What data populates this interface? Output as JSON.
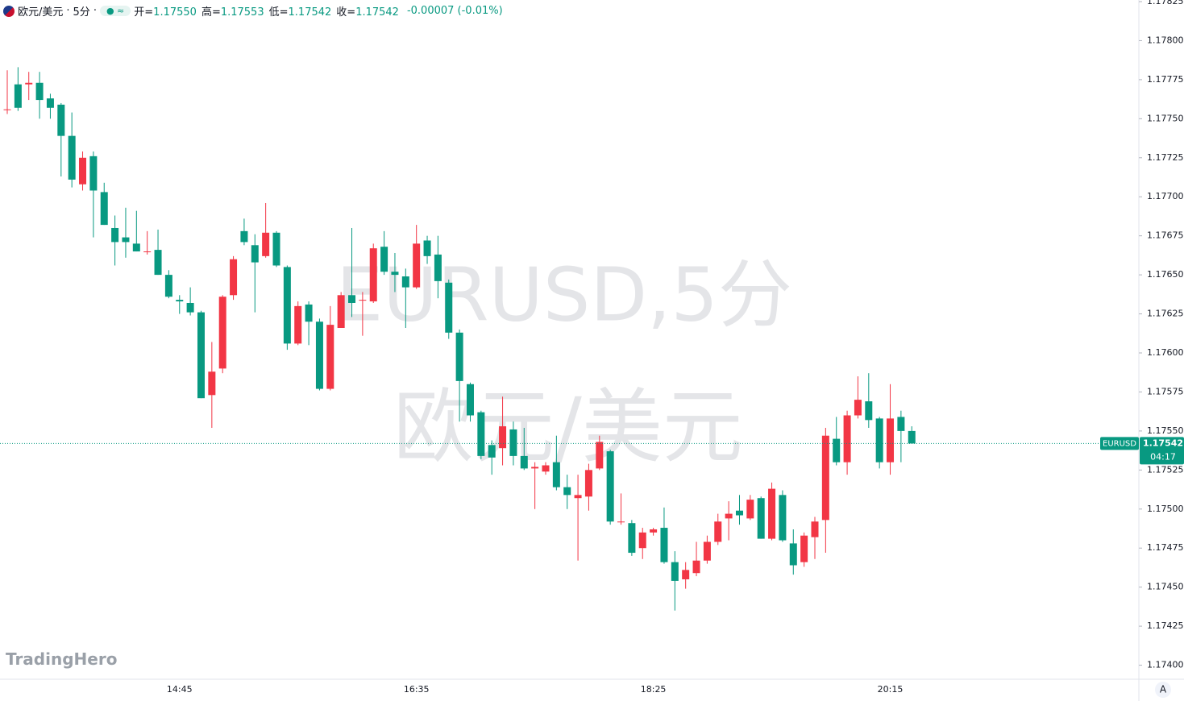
{
  "header": {
    "symbol": "欧元/美元",
    "interval": "5分",
    "ohlc": [
      {
        "label": "开=",
        "value": "1.17550"
      },
      {
        "label": "高=",
        "value": "1.17553"
      },
      {
        "label": "低=",
        "value": "1.17542"
      },
      {
        "label": "收=",
        "value": "1.17542"
      }
    ],
    "change": "-0.00007 (-0.01%)"
  },
  "watermark": {
    "line1": "EURUSD,5分",
    "line2": "欧元/美元"
  },
  "brand": "TradingHero",
  "scale_button": "A",
  "price_tag": {
    "symbol": "EURUSD",
    "price": {
      "value": 1.17542,
      "label": "1.17542"
    },
    "countdown": "04:17"
  },
  "chart_data": {
    "type": "candlestick",
    "up_color": "#f23645",
    "down_color": "#089981",
    "categories": [
      null,
      null,
      null,
      null,
      null,
      null,
      null,
      null,
      null,
      null,
      null,
      null,
      null,
      null,
      null,
      null,
      "14:45",
      null,
      null,
      null,
      null,
      null,
      null,
      null,
      null,
      null,
      null,
      null,
      null,
      null,
      null,
      null,
      null,
      null,
      null,
      null,
      null,
      null,
      "16:35",
      null,
      null,
      null,
      null,
      null,
      null,
      null,
      null,
      null,
      null,
      null,
      null,
      null,
      null,
      null,
      null,
      null,
      null,
      null,
      null,
      null,
      "18:25",
      null,
      null,
      null,
      null,
      null,
      null,
      null,
      null,
      null,
      null,
      null,
      null,
      null,
      null,
      null,
      null,
      null,
      null,
      null,
      null,
      null,
      "20:15",
      null,
      null
    ],
    "open": [
      1.17756,
      1.17772,
      1.17772,
      1.17773,
      1.17763,
      1.17759,
      1.17739,
      1.17708,
      1.17726,
      1.17703,
      1.1768,
      1.17674,
      1.1767,
      1.17665,
      1.17666,
      1.1765,
      1.17634,
      1.17632,
      1.17626,
      1.17573,
      1.1759,
      1.17637,
      1.17678,
      1.17669,
      1.17662,
      1.17677,
      1.17655,
      1.17606,
      1.17631,
      1.1762,
      1.17577,
      1.17616,
      1.17637,
      1.17634,
      1.17633,
      1.17668,
      1.17652,
      1.17649,
      1.17642,
      1.17672,
      1.17663,
      1.17645,
      1.17613,
      1.1758,
      1.17562,
      1.17541,
      1.17539,
      1.17551,
      1.17534,
      1.17526,
      1.17524,
      1.1753,
      1.17514,
      1.17507,
      1.17508,
      1.17526,
      1.17537,
      1.17492,
      1.17491,
      1.17475,
      1.17485,
      1.17488,
      1.17466,
      1.17455,
      1.17459,
      1.17467,
      1.17479,
      1.17494,
      1.17499,
      1.17494,
      1.17507,
      1.17481,
      1.17509,
      1.17478,
      1.17466,
      1.17482,
      1.17493,
      1.17545,
      1.1753,
      1.1756,
      1.17569,
      1.17558,
      1.1753,
      1.17559,
      1.1755
    ],
    "high": [
      1.17781,
      1.17783,
      1.1778,
      1.1778,
      1.17766,
      1.1776,
      1.17754,
      1.17729,
      1.17729,
      1.17709,
      1.17688,
      1.17693,
      1.17691,
      1.17678,
      1.17679,
      1.17653,
      1.17637,
      1.17642,
      1.17627,
      1.17607,
      1.17637,
      1.17662,
      1.17686,
      1.17676,
      1.17696,
      1.17678,
      1.17656,
      1.17633,
      1.17633,
      1.17622,
      1.1763,
      1.17639,
      1.1768,
      1.17639,
      1.1767,
      1.17678,
      1.17664,
      1.17654,
      1.17682,
      1.17675,
      1.17675,
      1.17647,
      1.17615,
      1.17581,
      1.17563,
      1.17544,
      1.17572,
      1.17556,
      1.17552,
      1.1753,
      1.1753,
      1.17547,
      1.17522,
      1.17522,
      1.17529,
      1.17547,
      1.17538,
      1.1751,
      1.17493,
      1.17488,
      1.17488,
      1.17501,
      1.17473,
      1.17466,
      1.17479,
      1.17483,
      1.17497,
      1.17505,
      1.17509,
      1.17509,
      1.17508,
      1.17517,
      1.17512,
      1.17487,
      1.17485,
      1.17495,
      1.17552,
      1.17559,
      1.17563,
      1.17585,
      1.17587,
      1.17559,
      1.1758,
      1.17563,
      1.17553
    ],
    "low": [
      1.17753,
      1.17755,
      1.17762,
      1.1775,
      1.1775,
      1.17713,
      1.17706,
      1.17704,
      1.17674,
      1.17682,
      1.17656,
      1.17661,
      1.17665,
      1.17663,
      1.1765,
      1.17635,
      1.17625,
      1.17624,
      1.17571,
      1.17552,
      1.17587,
      1.17634,
      1.17669,
      1.17626,
      1.17661,
      1.17655,
      1.17602,
      1.17605,
      1.17605,
      1.17576,
      1.17576,
      1.17619,
      1.17623,
      1.17611,
      1.17632,
      1.1765,
      1.17639,
      1.17616,
      1.17641,
      1.17657,
      1.17635,
      1.17609,
      1.17556,
      1.17556,
      1.17532,
      1.17522,
      1.17528,
      1.17528,
      1.17525,
      1.175,
      1.17522,
      1.17512,
      1.175,
      1.17467,
      1.17499,
      1.17525,
      1.1749,
      1.1749,
      1.1747,
      1.17468,
      1.17483,
      1.17465,
      1.17435,
      1.17449,
      1.17457,
      1.17465,
      1.17477,
      1.1748,
      1.1749,
      1.17493,
      1.17481,
      1.1748,
      1.17479,
      1.17458,
      1.17463,
      1.17468,
      1.17472,
      1.17528,
      1.17522,
      1.17558,
      1.17552,
      1.17526,
      1.17522,
      1.1753,
      1.17542
    ],
    "close": [
      1.17756,
      1.17757,
      1.17773,
      1.17762,
      1.17757,
      1.17739,
      1.17711,
      1.17725,
      1.17704,
      1.17682,
      1.17671,
      1.17671,
      1.17665,
      1.17665,
      1.1765,
      1.17636,
      1.17633,
      1.17626,
      1.17571,
      1.17588,
      1.17636,
      1.1766,
      1.17671,
      1.17658,
      1.17677,
      1.17656,
      1.17606,
      1.1763,
      1.1762,
      1.17577,
      1.17618,
      1.17637,
      1.17632,
      1.17634,
      1.17667,
      1.17652,
      1.1765,
      1.17642,
      1.1767,
      1.17662,
      1.17646,
      1.17613,
      1.17582,
      1.1756,
      1.17534,
      1.17533,
      1.17553,
      1.17534,
      1.17526,
      1.17527,
      1.17528,
      1.17514,
      1.17509,
      1.17509,
      1.17525,
      1.17543,
      1.17492,
      1.17492,
      1.17472,
      1.17485,
      1.17487,
      1.17466,
      1.17454,
      1.17461,
      1.17467,
      1.17479,
      1.17492,
      1.17497,
      1.17496,
      1.17506,
      1.17481,
      1.17513,
      1.1748,
      1.17464,
      1.17483,
      1.17492,
      1.17547,
      1.1753,
      1.1756,
      1.1757,
      1.17557,
      1.1753,
      1.17558,
      1.1755,
      1.17542
    ],
    "ylim": [
      1.17391,
      1.17825
    ],
    "yticks": [
      {
        "value": 1.174,
        "label": "1.17400"
      },
      {
        "value": 1.17425,
        "label": "1.17425"
      },
      {
        "value": 1.1745,
        "label": "1.17450"
      },
      {
        "value": 1.17475,
        "label": "1.17475"
      },
      {
        "value": 1.175,
        "label": "1.17500"
      },
      {
        "value": 1.17525,
        "label": "1.17525"
      },
      {
        "value": 1.1755,
        "label": "1.17550"
      },
      {
        "value": 1.17575,
        "label": "1.17575"
      },
      {
        "value": 1.176,
        "label": "1.17600"
      },
      {
        "value": 1.17625,
        "label": "1.17625"
      },
      {
        "value": 1.1765,
        "label": "1.17650"
      },
      {
        "value": 1.17675,
        "label": "1.17675"
      },
      {
        "value": 1.177,
        "label": "1.17700"
      },
      {
        "value": 1.17725,
        "label": "1.17725"
      },
      {
        "value": 1.1775,
        "label": "1.17750"
      },
      {
        "value": 1.17775,
        "label": "1.17775"
      },
      {
        "value": 1.178,
        "label": "1.17800"
      },
      {
        "value": 1.17825,
        "label": "1.17825"
      }
    ]
  }
}
